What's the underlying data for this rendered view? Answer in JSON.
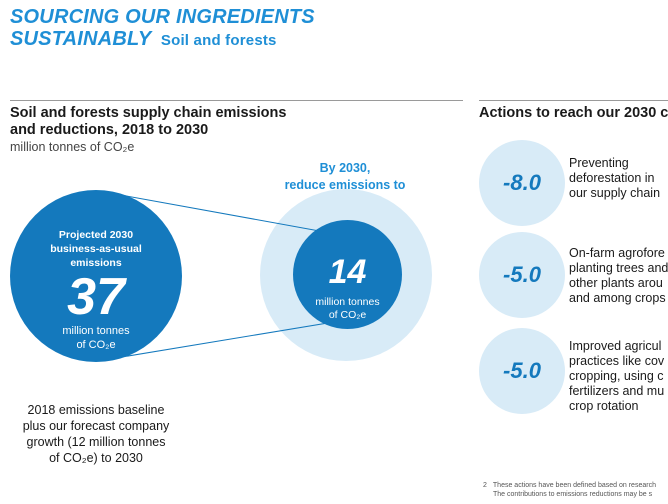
{
  "header": {
    "line1": "SOURCING OUR INGREDIENTS",
    "line2": "SUSTAINABLY",
    "line2_sub": "Soil and forests"
  },
  "left_section": {
    "title_line1": "Soil and forests supply chain emissions",
    "title_line2": "and reductions, 2018 to 2030",
    "unit": "million tonnes of CO₂e"
  },
  "projected": {
    "label_line1": "Projected 2030",
    "label_line2": "business-as-usual",
    "label_line3": "emissions",
    "value": "37",
    "unit_line1": "million tonnes",
    "unit_line2": "of CO₂e"
  },
  "target": {
    "heading_line1": "By 2030,",
    "heading_line2": "reduce emissions to",
    "value": "14",
    "unit_line1": "million tonnes",
    "unit_line2": "of CO₂e"
  },
  "caption": {
    "line1": "2018 emissions baseline",
    "line2": "plus our forecast company",
    "line3": "growth (12 million tonnes",
    "line4": "of CO₂e) to 2030"
  },
  "right_section": {
    "title": "Actions to reach our 2030 c"
  },
  "actions": [
    {
      "value": "-8.0",
      "text": "Preventing\ndeforestation in\nour supply chain"
    },
    {
      "value": "-5.0",
      "text": "On-farm agrofore\nplanting trees and\nother plants arou\nand among crops"
    },
    {
      "value": "-5.0",
      "text": "Improved agricul\npractices like cov\ncropping, using c\nfertilizers and mu\ncrop rotation"
    }
  ],
  "footnote": {
    "number": "2",
    "line1": "These actions have been defined based on research",
    "line2": "The contributions to emissions reductions may be s"
  },
  "colors": {
    "brand_blue": "#1f8fd6",
    "dark_blue": "#1479bd",
    "light_blue": "#d8ebf7"
  }
}
